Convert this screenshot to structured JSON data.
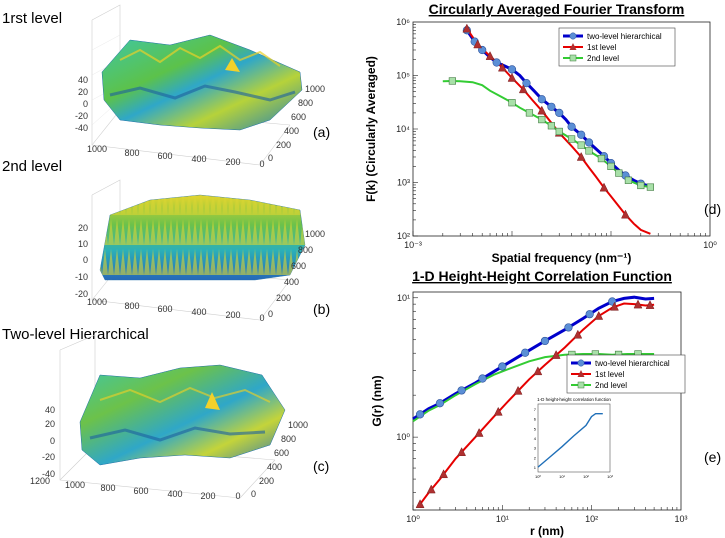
{
  "surfaces": [
    {
      "title": "1rst level",
      "label": "(a)",
      "z_ticks": [
        "40",
        "20",
        "0",
        "-20",
        "-40"
      ],
      "x_ticks": [
        "1000",
        "800",
        "600",
        "400",
        "200",
        "0"
      ],
      "y_ticks": [
        "1000",
        "800",
        "600",
        "400",
        "200",
        "0"
      ]
    },
    {
      "title": "2nd level",
      "label": "(b)",
      "z_ticks": [
        "20",
        "10",
        "0",
        "-10",
        "-20"
      ],
      "x_ticks": [
        "1000",
        "800",
        "600",
        "400",
        "200",
        "0"
      ],
      "y_ticks": [
        "1000",
        "800",
        "600",
        "400",
        "200",
        "0"
      ]
    },
    {
      "title": "Two-level Hierarchical",
      "label": "(c)",
      "z_ticks": [
        "40",
        "20",
        "0",
        "-20",
        "-40"
      ],
      "x_ticks": [
        "1200",
        "1000",
        "800",
        "600",
        "400",
        "200",
        "0"
      ],
      "y_ticks": [
        "1000",
        "800",
        "600",
        "400",
        "200",
        "0"
      ]
    }
  ],
  "colors": {
    "blue": "#0000cc",
    "red": "#e60000",
    "green": "#33cc33",
    "marker_blue": "#5b8fd6",
    "marker_red": "#b03030",
    "marker_green": "#a8e0a8"
  },
  "chart_data": [
    {
      "type": "line",
      "title": "Circularly Averaged Fourier Transform",
      "xlabel": "Spatial frequency (nm⁻¹)",
      "ylabel": "F(k) (Circularly Averaged)",
      "panel_label": "(d)",
      "xscale": "log",
      "yscale": "log",
      "xlim": [
        0.001,
        1
      ],
      "ylim": [
        100,
        1000000
      ],
      "x_tick_labels": [
        "10⁻³",
        "10⁰"
      ],
      "y_tick_labels": [
        "10²",
        "10³",
        "10⁴",
        "10⁵",
        "10⁶"
      ],
      "legend": [
        "two-level hierarchical",
        "1st level",
        "2nd level"
      ],
      "legend_position": "top-right",
      "series": [
        {
          "name": "two-level hierarchical",
          "color": "#0000cc",
          "x": [
            0.0035,
            0.0042,
            0.005,
            0.006,
            0.007,
            0.0085,
            0.01,
            0.012,
            0.014,
            0.017,
            0.02,
            0.025,
            0.03,
            0.035,
            0.04,
            0.05,
            0.06,
            0.07,
            0.085,
            0.1,
            0.12,
            0.14,
            0.17,
            0.2,
            0.25
          ],
          "y": [
            700000,
            430000,
            300000,
            220000,
            175000,
            150000,
            130000,
            100000,
            72000,
            50000,
            36000,
            26000,
            20000,
            15000,
            11000,
            7800,
            5600,
            4300,
            3100,
            2300,
            1700,
            1350,
            1100,
            950,
            850
          ]
        },
        {
          "name": "1st level",
          "color": "#e60000",
          "x": [
            0.0035,
            0.0045,
            0.006,
            0.008,
            0.01,
            0.013,
            0.016,
            0.02,
            0.025,
            0.03,
            0.04,
            0.05,
            0.06,
            0.07,
            0.085,
            0.1,
            0.12,
            0.14,
            0.17,
            0.2,
            0.25
          ],
          "y": [
            750000,
            380000,
            230000,
            140000,
            90000,
            55000,
            35000,
            22000,
            13000,
            8500,
            4800,
            3000,
            1900,
            1300,
            800,
            550,
            360,
            250,
            170,
            130,
            110
          ]
        },
        {
          "name": "2nd level",
          "color": "#33cc33",
          "x": [
            0.002,
            0.0025,
            0.003,
            0.004,
            0.005,
            0.006,
            0.008,
            0.01,
            0.012,
            0.015,
            0.02,
            0.025,
            0.03,
            0.04,
            0.05,
            0.06,
            0.08,
            0.1,
            0.12,
            0.15,
            0.2,
            0.25
          ],
          "y": [
            78000,
            79000,
            78000,
            75000,
            66000,
            52000,
            39000,
            31000,
            25000,
            20000,
            15000,
            11500,
            9000,
            6500,
            5000,
            3900,
            2800,
            2000,
            1500,
            1100,
            880,
            820
          ]
        }
      ],
      "markers": {
        "two-level hierarchical": [
          0.0035,
          0.0042,
          0.005,
          0.007,
          0.01,
          0.014,
          0.02,
          0.025,
          0.03,
          0.04,
          0.05,
          0.06,
          0.085,
          0.1,
          0.14,
          0.2
        ],
        "1st level": [
          0.0035,
          0.0045,
          0.006,
          0.008,
          0.01,
          0.013,
          0.02,
          0.03,
          0.05,
          0.085,
          0.14
        ],
        "2nd level": [
          0.0025,
          0.01,
          0.015,
          0.02,
          0.025,
          0.03,
          0.04,
          0.05,
          0.06,
          0.08,
          0.1,
          0.12,
          0.15,
          0.2,
          0.25
        ]
      }
    },
    {
      "type": "line",
      "title": "1-D Height-Height Correlation Function",
      "xlabel": "r (nm)",
      "ylabel": "G(r) (nm)",
      "panel_label": "(e)",
      "xscale": "log",
      "yscale": "log",
      "xlim": [
        1,
        1000
      ],
      "ylim": [
        0.3,
        11
      ],
      "x_tick_labels": [
        "10⁰",
        "10¹",
        "10²",
        "10³"
      ],
      "y_tick_labels": [
        "10⁰",
        "10¹"
      ],
      "legend": [
        "two-level hierarchical",
        "1st level",
        "2nd level"
      ],
      "legend_position": "center-right",
      "series": [
        {
          "name": "two-level hierarchical",
          "color": "#0000cc",
          "x": [
            1,
            1.5,
            2,
            3,
            5,
            8,
            12,
            20,
            30,
            50,
            80,
            120,
            170,
            230,
            300,
            400,
            500
          ],
          "y": [
            1.35,
            1.6,
            1.75,
            2.05,
            2.45,
            2.95,
            3.45,
            4.2,
            4.9,
            5.9,
            7.1,
            8.4,
            9.4,
            9.9,
            10.1,
            9.8,
            9.9
          ]
        },
        {
          "name": "1st level",
          "color": "#e60000",
          "x": [
            1.2,
            1.5,
            2,
            3,
            5,
            8,
            12,
            20,
            30,
            50,
            80,
            120,
            170,
            230,
            300,
            400,
            500
          ],
          "y": [
            0.33,
            0.4,
            0.5,
            0.7,
            1.0,
            1.4,
            1.85,
            2.6,
            3.3,
            4.4,
            5.9,
            7.4,
            8.5,
            9.1,
            9.0,
            8.8,
            8.9
          ]
        },
        {
          "name": "2nd level",
          "color": "#33cc33",
          "x": [
            1,
            1.5,
            2,
            3,
            5,
            8,
            12,
            20,
            30,
            50,
            80,
            120,
            170,
            250,
            350,
            500
          ],
          "y": [
            1.3,
            1.55,
            1.7,
            2.0,
            2.4,
            2.8,
            3.1,
            3.5,
            3.75,
            3.9,
            3.95,
            3.95,
            3.9,
            3.95,
            3.95,
            3.95
          ]
        }
      ],
      "markers": {
        "two-level hierarchical": [
          1.2,
          2,
          3.5,
          6,
          10,
          18,
          30,
          55,
          95,
          170
        ],
        "1st level": [
          1.2,
          1.6,
          2.2,
          3.5,
          5.5,
          9,
          15,
          25,
          40,
          70,
          120,
          180,
          330,
          450
        ],
        "2nd level": [
          60,
          110,
          200,
          330
        ]
      },
      "inset": {
        "title": "1-D height-height correlation function",
        "x_tick_labels": [
          "10⁰",
          "10¹",
          "10²",
          "10³"
        ],
        "y_tick_labels": [
          "7",
          "6",
          "5",
          "4",
          "3",
          "2",
          "1"
        ],
        "x": [
          1,
          3,
          10,
          30,
          100,
          170,
          250,
          500
        ],
        "y": [
          0.5,
          1.5,
          2.6,
          3.7,
          4.8,
          5.7,
          6.0,
          6.0
        ]
      }
    }
  ]
}
